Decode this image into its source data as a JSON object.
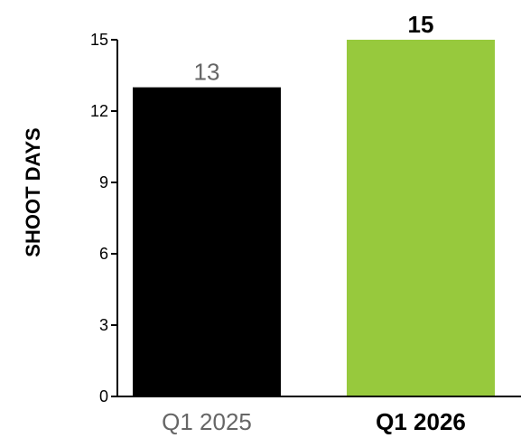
{
  "chart_data": {
    "type": "bar",
    "title": "",
    "xlabel": "",
    "ylabel": "SHOOT DAYS",
    "categories": [
      "Q1 2025",
      "Q1 2026"
    ],
    "values": [
      13,
      15
    ],
    "ylim": [
      0,
      15
    ],
    "yticks": [
      0,
      3,
      6,
      9,
      12,
      15
    ],
    "grid": false,
    "legend": "none",
    "bar_colors": [
      "#000000",
      "#97c93d"
    ],
    "label_colors": [
      "#666666",
      "#000000"
    ],
    "label_bold": [
      false,
      true
    ]
  }
}
